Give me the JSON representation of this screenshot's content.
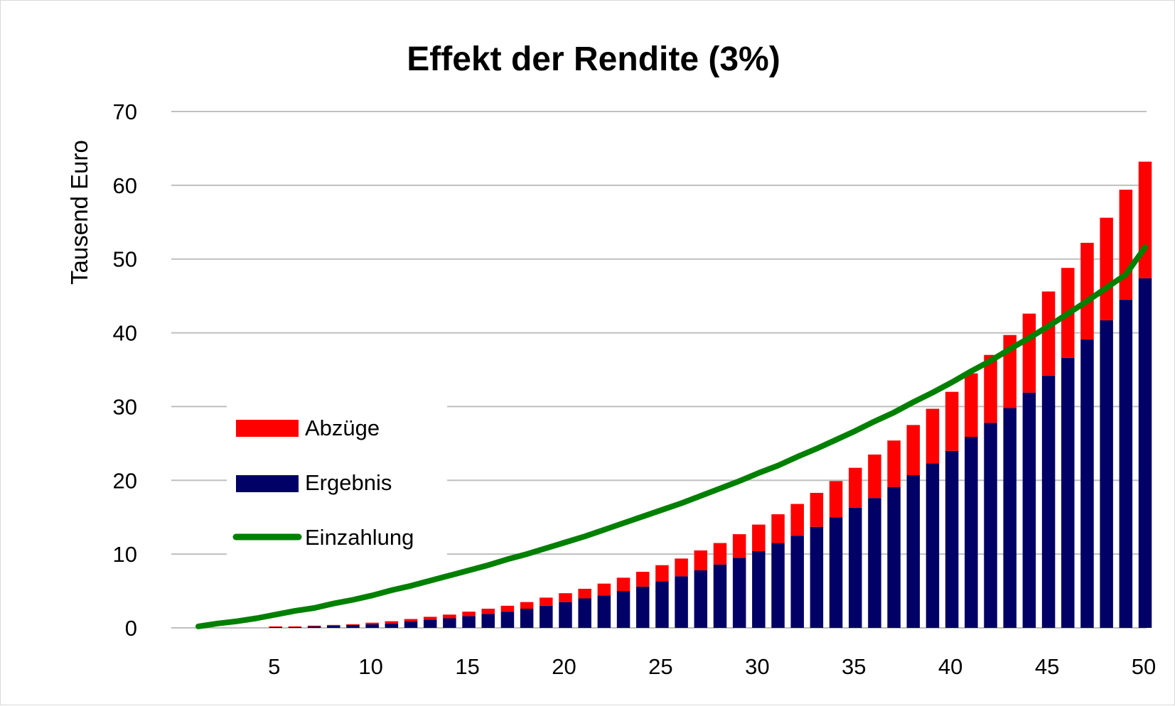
{
  "chart_data": {
    "type": "bar",
    "title": "Effekt der Rendite (3%)",
    "xlabel": "",
    "ylabel": "Tausend Euro",
    "ylim": [
      0,
      70
    ],
    "yticks": [
      0,
      10,
      20,
      30,
      40,
      50,
      60,
      70
    ],
    "xlim": [
      1,
      50
    ],
    "xticks": [
      5,
      10,
      15,
      20,
      25,
      30,
      35,
      40,
      45,
      50
    ],
    "grid": true,
    "stacked": true,
    "legend_position": "center-left",
    "x": [
      1,
      2,
      3,
      4,
      5,
      6,
      7,
      8,
      9,
      10,
      11,
      12,
      13,
      14,
      15,
      16,
      17,
      18,
      19,
      20,
      21,
      22,
      23,
      24,
      25,
      26,
      27,
      28,
      29,
      30,
      31,
      32,
      33,
      34,
      35,
      36,
      37,
      38,
      39,
      40,
      41,
      42,
      43,
      44,
      45,
      46,
      47,
      48,
      49,
      50
    ],
    "series": [
      {
        "name": "Ergebnis",
        "type": "bar",
        "color": "#000066",
        "values": [
          0.0,
          0.0,
          0.0,
          0.0,
          0.1,
          0.1,
          0.2,
          0.3,
          0.4,
          0.5,
          0.6,
          0.9,
          1.1,
          1.3,
          1.6,
          1.9,
          2.2,
          2.6,
          3.0,
          3.5,
          4.0,
          4.4,
          5.0,
          5.6,
          6.3,
          7.0,
          7.8,
          8.6,
          9.5,
          10.4,
          11.5,
          12.5,
          13.7,
          15.0,
          16.3,
          17.6,
          19.1,
          20.7,
          22.3,
          24.0,
          25.9,
          27.8,
          29.8,
          31.9,
          34.2,
          36.6,
          39.1,
          41.7,
          44.5,
          47.4
        ]
      },
      {
        "name": "Abzüge",
        "type": "bar",
        "color": "#ff0000",
        "values": [
          0.0,
          0.0,
          0.0,
          0.0,
          0.1,
          0.1,
          0.1,
          0.1,
          0.1,
          0.2,
          0.3,
          0.3,
          0.4,
          0.5,
          0.6,
          0.7,
          0.8,
          0.9,
          1.1,
          1.2,
          1.3,
          1.6,
          1.8,
          2.0,
          2.2,
          2.4,
          2.7,
          2.9,
          3.2,
          3.6,
          3.9,
          4.3,
          4.6,
          4.9,
          5.4,
          5.9,
          6.3,
          6.8,
          7.4,
          8.0,
          8.6,
          9.2,
          9.9,
          10.7,
          11.4,
          12.2,
          13.1,
          13.9,
          14.9,
          15.8
        ]
      },
      {
        "name": "Einzahlung",
        "type": "line",
        "color": "#008000",
        "values": [
          0.2,
          0.6,
          0.9,
          1.3,
          1.8,
          2.3,
          2.7,
          3.3,
          3.8,
          4.4,
          5.1,
          5.7,
          6.4,
          7.1,
          7.8,
          8.5,
          9.3,
          10.0,
          10.8,
          11.6,
          12.4,
          13.3,
          14.2,
          15.1,
          16.0,
          16.9,
          17.9,
          18.9,
          19.9,
          21.0,
          22.0,
          23.2,
          24.3,
          25.5,
          26.7,
          28.0,
          29.2,
          30.6,
          31.9,
          33.3,
          34.8,
          36.2,
          37.8,
          39.3,
          40.9,
          42.6,
          44.3,
          46.1,
          47.9,
          51.6
        ]
      }
    ],
    "legend": [
      {
        "label": "Abzüge",
        "kind": "bar",
        "color": "#ff0000"
      },
      {
        "label": "Ergebnis",
        "kind": "bar",
        "color": "#000066"
      },
      {
        "label": "Einzahlung",
        "kind": "line",
        "color": "#008000"
      }
    ],
    "colors": {
      "gridline": "#bfbfbf",
      "frame": "#d9d9d9"
    }
  }
}
